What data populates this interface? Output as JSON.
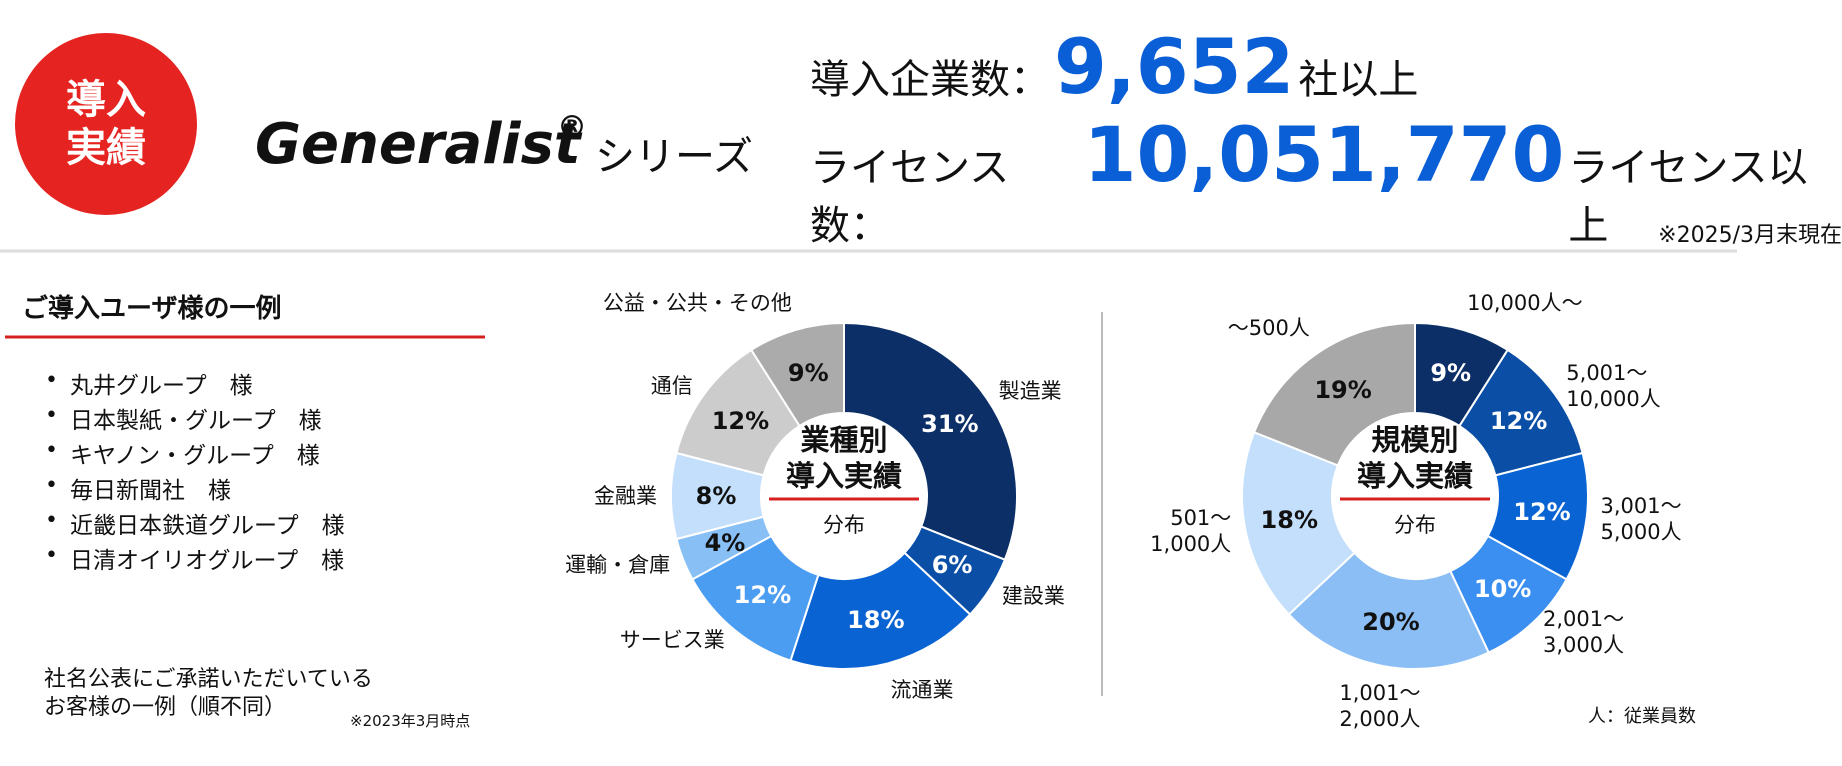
{
  "header": {
    "badge": "導入\n実績",
    "brand": "Generalist",
    "registered": "®",
    "series_label": "シリーズ",
    "stats": [
      {
        "label": "導入企業数：",
        "value": "9,652",
        "suffix": "社以上"
      },
      {
        "label": "ライセンス数：",
        "value": "10,051,770",
        "suffix": "ライセンス以上"
      }
    ],
    "as_of": "※2025/3月末現在"
  },
  "users": {
    "title": "ご導入ユーザ様の一例",
    "items": [
      "丸井グループ　様",
      "日本製紙・グループ　様",
      "キヤノン・グループ　様",
      "毎日新聞社　様",
      "近畿日本鉄道グループ　様",
      "日清オイリオグループ　様"
    ],
    "note": "社名公表にご承諾いただいている\nお客様の一例（順不同）",
    "date_note": "※2023年3月時点"
  },
  "chart_data": [
    {
      "type": "pie",
      "title": "業種別\n導入実績",
      "subtitle": "分布",
      "categories": [
        "製造業",
        "建設業",
        "流通業",
        "サービス業",
        "運輸・倉庫",
        "金融業",
        "通信",
        "公益・公共・その他"
      ],
      "values": [
        31,
        6,
        18,
        12,
        4,
        8,
        12,
        9
      ],
      "value_labels": [
        "31%",
        "6%",
        "18%",
        "12%",
        "4%",
        "8%",
        "12%",
        "9%"
      ],
      "colors": [
        "#0b2f66",
        "#0a4ea6",
        "#0a63d2",
        "#4b9df2",
        "#88c0f6",
        "#c3dffb",
        "#cccccc",
        "#ababab"
      ]
    },
    {
      "type": "pie",
      "title": "規模別\n導入実績",
      "subtitle": "分布",
      "categories": [
        "10,000人～",
        "5,001～\n10,000人",
        "3,001～\n5,000人",
        "2,001～\n3,000人",
        "1,001～\n2,000人",
        "501～\n1,000人",
        "～500人"
      ],
      "values": [
        9,
        12,
        12,
        10,
        20,
        18,
        19
      ],
      "value_labels": [
        "9%",
        "12%",
        "12%",
        "10%",
        "20%",
        "18%",
        "19%"
      ],
      "colors": [
        "#0b2f66",
        "#0a4ea6",
        "#0a63d2",
        "#3b8ff0",
        "#8cbef6",
        "#c3dffb",
        "#a8a8a8"
      ],
      "note": "人：従業員数"
    }
  ]
}
